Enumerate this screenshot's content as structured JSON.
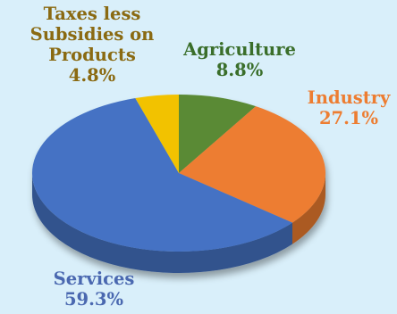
{
  "chart_data": {
    "type": "pie",
    "style": "3d",
    "slices": [
      {
        "name": "Agriculture",
        "value": 8.8,
        "label": "8.8%",
        "color": "#5a8a35",
        "label_color": "#3a6e2a"
      },
      {
        "name": "Industry",
        "value": 27.1,
        "label": "27.1%",
        "color": "#ed7d31",
        "label_color": "#ed7d31"
      },
      {
        "name": "Services",
        "value": 59.3,
        "label": "59.3%",
        "color": "#4472c4",
        "label_color": "#4a68b0"
      },
      {
        "name": "Taxes less Subsidies on Products",
        "value": 4.8,
        "label": "4.8%",
        "color": "#f2c200",
        "label_color": "#8a6a12"
      }
    ]
  }
}
